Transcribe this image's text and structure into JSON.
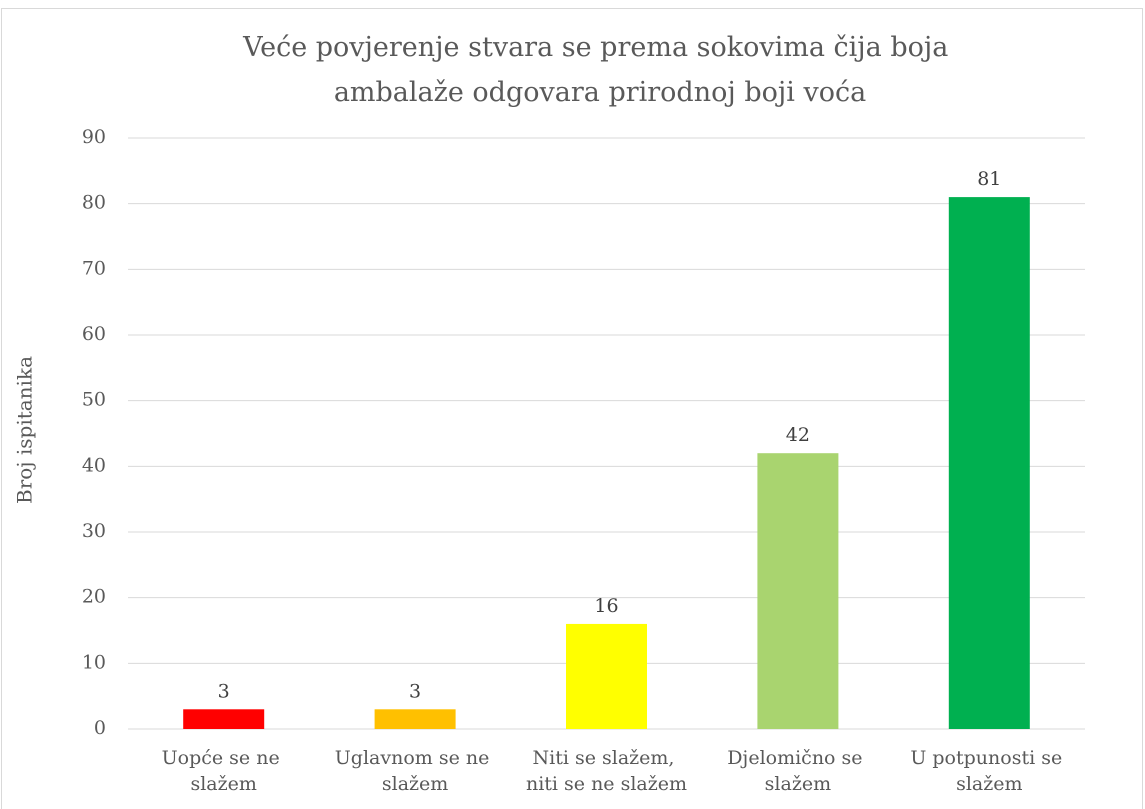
{
  "chart_data": {
    "type": "bar",
    "title": "Veće povjerenje stvara se prema sokovima čija boja ambalaže odgovara prirodnoj boji voća",
    "y_label": "Broj ispitanika",
    "categories": [
      "Uopće se ne slažem",
      "Uglavnom se ne slažem",
      "Niti se slažem, niti se ne slažem",
      "Djelomično se slažem",
      "U potpunosti se slažem"
    ],
    "values": [
      3,
      3,
      16,
      42,
      81
    ],
    "colors": [
      "#ff0000",
      "#ffc000",
      "#ffff00",
      "#a9d46f",
      "#00b050"
    ],
    "ylim": [
      0,
      90
    ],
    "yticks": [
      0,
      10,
      20,
      30,
      40,
      50,
      60,
      70,
      80,
      90
    ],
    "grid": true
  }
}
